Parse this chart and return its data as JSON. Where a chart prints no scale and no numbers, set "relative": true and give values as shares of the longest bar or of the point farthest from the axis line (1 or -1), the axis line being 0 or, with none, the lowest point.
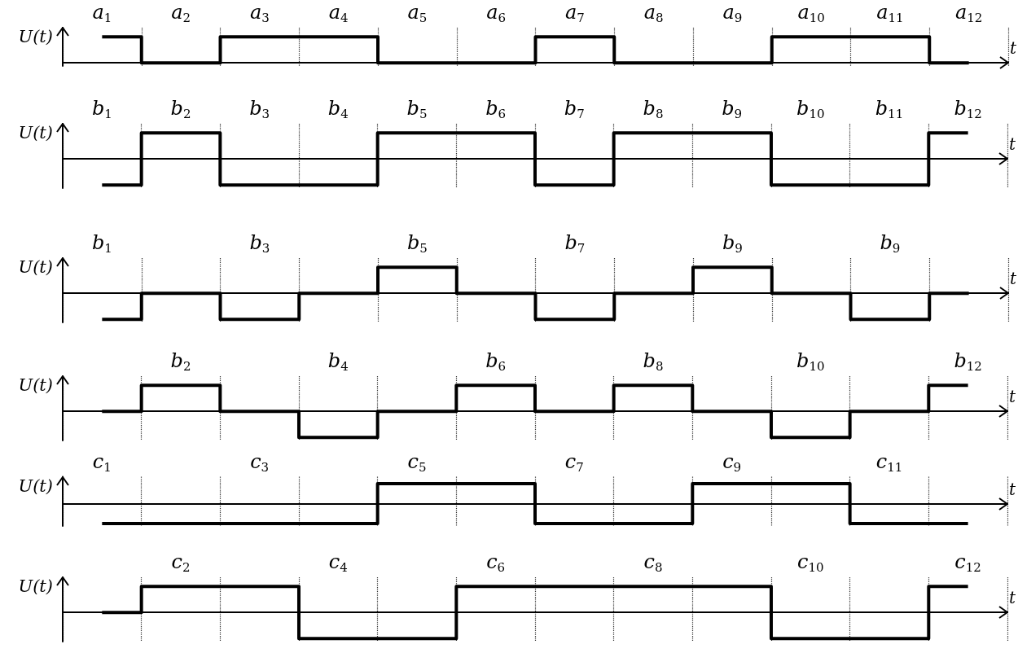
{
  "chart_data": [
    {
      "type": "step",
      "relative": true,
      "ylabel": "U(t)",
      "xlabel": "t",
      "grid": "x",
      "tick_labels": "x",
      "marker": "none",
      "line_style": "solid",
      "categories": [
        "a$_{1}$",
        "a$_{2}$",
        "a$_{3}$",
        "a$_{4}$",
        "a$_{5}$",
        "a$_{6}$",
        "a$_{7}$",
        "a$_{8}$",
        "a$_{9}$",
        "a$_{10}$",
        "a$_{11}$",
        "a$_{12}$"
      ],
      "series": [
        {
          "color": "#000000",
          "values": [
            1,
            0,
            1,
            1,
            0,
            0,
            1,
            0,
            0,
            1,
            1,
            0
          ]
        }
      ]
    },
    {
      "type": "step",
      "relative": true,
      "ylabel": "U(t)",
      "xlabel": "t",
      "grid": "x",
      "tick_labels": "x",
      "marker": "none",
      "line_style": "solid",
      "categories": [
        "b$_{1}$",
        "b$_{2}$",
        "b$_{3}$",
        "b$_{4}$",
        "b$_{5}$",
        "b$_{6}$",
        "b$_{7}$",
        "b$_{8}$",
        "b$_{9}$",
        "b$_{10}$",
        "b$_{11}$",
        "b$_{12}$"
      ],
      "series": [
        {
          "color": "#000000",
          "values": [
            -1,
            1,
            -1,
            -1,
            1,
            1,
            -1,
            1,
            1,
            -1,
            -1,
            1
          ]
        }
      ]
    },
    {
      "type": "step",
      "relative": true,
      "ylabel": "U(t)",
      "xlabel": "t",
      "grid": "x",
      "tick_labels": "x",
      "marker": "none",
      "line_style": "solid",
      "categories": [
        "b$_{1}$",
        null,
        "b$_{3}$",
        null,
        "b$_{5}$",
        null,
        "b$_{7}$",
        null,
        "b$_{9}$",
        null,
        "b$_{9}$",
        null
      ],
      "series": [
        {
          "color": "#000000",
          "values": [
            -1,
            0,
            -1,
            0,
            1,
            0,
            -1,
            0,
            1,
            0,
            -1,
            0
          ]
        }
      ]
    },
    {
      "type": "step",
      "relative": true,
      "ylabel": "U(t)",
      "xlabel": "t",
      "grid": "x",
      "tick_labels": "x",
      "marker": "none",
      "line_style": "solid",
      "categories": [
        null,
        "b$_{2}$",
        null,
        "b$_{4}$",
        null,
        "b$_{6}$",
        null,
        "b$_{8}$",
        null,
        "b$_{10}$",
        null,
        "b$_{12}$"
      ],
      "series": [
        {
          "color": "#000000",
          "values": [
            0,
            1,
            0,
            -1,
            0,
            1,
            0,
            1,
            0,
            -1,
            0,
            1
          ]
        }
      ]
    },
    {
      "type": "step",
      "relative": true,
      "ylabel": "U(t)",
      "xlabel": "t",
      "grid": "x",
      "tick_labels": "x",
      "marker": "none",
      "line_style": "solid",
      "categories": [
        "c$_{1}$",
        null,
        "c$_{3}$",
        null,
        "c$_{5}$",
        null,
        "c$_{7}$",
        null,
        "c$_{9}$",
        null,
        "c$_{11}$",
        null
      ],
      "series": [
        {
          "color": "#000000",
          "values": [
            -1,
            -1,
            -1,
            -1,
            1,
            1,
            -1,
            -1,
            1,
            1,
            -1,
            -1
          ]
        }
      ]
    },
    {
      "type": "step",
      "relative": true,
      "ylabel": "U(t)",
      "xlabel": "t",
      "grid": "x",
      "tick_labels": "x",
      "marker": "none",
      "line_style": "solid",
      "categories": [
        null,
        "c$_{2}$",
        null,
        "c$_{4}$",
        null,
        "c$_{6}$",
        null,
        "c$_{8}$",
        null,
        "c$_{10}$",
        null,
        "c$_{12}$"
      ],
      "series": [
        {
          "color": "#000000",
          "values": [
            0,
            1,
            1,
            -1,
            -1,
            1,
            1,
            1,
            1,
            -1,
            -1,
            1
          ]
        }
      ]
    }
  ]
}
